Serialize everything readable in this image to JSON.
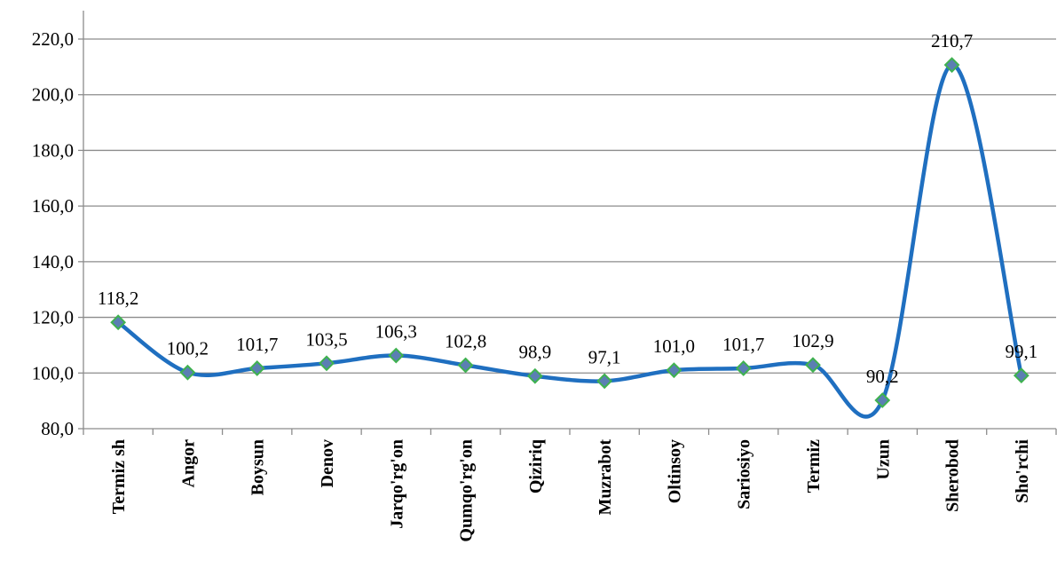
{
  "chart_data": {
    "type": "line",
    "title": "",
    "xlabel": "",
    "ylabel": "",
    "categories": [
      "Termiz sh",
      "Angor",
      "Boysun",
      "Denov",
      "Jarqo'rg'on",
      "Qumqo'rg'on",
      "Qiziriq",
      "Muzrabot",
      "Oltinsoy",
      "Sariosiyo",
      "Termiz",
      "Uzun",
      "Sherobod",
      "Sho'rchi"
    ],
    "series": [
      {
        "values": [
          118.2,
          100.2,
          101.7,
          103.5,
          106.3,
          102.8,
          98.9,
          97.1,
          101.0,
          101.7,
          102.9,
          90.2,
          210.7,
          99.1
        ],
        "labels": [
          "118,2",
          "100,2",
          "101,7",
          "103,5",
          "106,3",
          "102,8",
          "98,9",
          "97,1",
          "101,0",
          "101,7",
          "102,9",
          "90,2",
          "210,7",
          "99,1"
        ]
      }
    ],
    "ylim": [
      80,
      220
    ],
    "yticks": [
      80,
      100,
      120,
      140,
      160,
      180,
      200,
      220
    ],
    "ytick_labels": [
      "80,0",
      "100,0",
      "120,0",
      "140,0",
      "160,0",
      "180,0",
      "200,0",
      "220,0"
    ],
    "grid": true,
    "line_smooth": true,
    "colors": {
      "line": "#1f6fc0",
      "marker_fill": "#5b7fb3",
      "marker_stroke": "#3fb24f",
      "grid": "#8c8c8c",
      "axis": "#8c8c8c"
    }
  }
}
